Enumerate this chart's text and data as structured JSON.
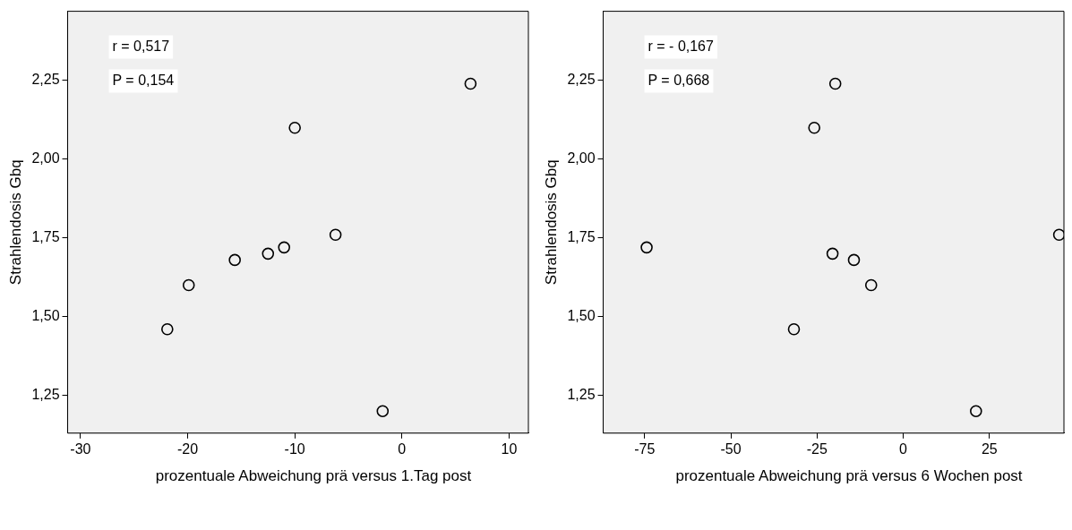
{
  "chart_data": [
    {
      "type": "scatter",
      "xlabel": "prozentuale Abweichung prä versus 1.Tag post",
      "ylabel": "Strahlendosis Gbq",
      "marker": "circle",
      "series": [
        {
          "color": "#000000",
          "x": [
            6.4,
            -10.0,
            -6.2,
            -11.0,
            -12.5,
            -15.6,
            -19.9,
            -21.9,
            -1.8
          ],
          "values": [
            2.24,
            2.1,
            1.76,
            1.72,
            1.7,
            1.68,
            1.6,
            1.46,
            1.2
          ]
        }
      ],
      "xlim": [
        -31.2,
        11.8
      ],
      "xticks": [
        -30,
        -20,
        -10,
        0,
        10
      ],
      "ylim": [
        1.13,
        2.47
      ],
      "yticks": [
        {
          "value": 1.25,
          "label": "1,25"
        },
        {
          "value": 1.5,
          "label": "1,50"
        },
        {
          "value": 1.75,
          "label": "1,75"
        },
        {
          "value": 2.0,
          "label": "2,00"
        },
        {
          "value": 2.25,
          "label": "2,25"
        }
      ],
      "annotations": [
        "r = 0,517",
        "P = 0,154"
      ]
    },
    {
      "type": "scatter",
      "xlabel": "prozentuale Abweichung prä versus 6 Wochen post",
      "ylabel": "Strahlendosis Gbq",
      "marker": "circle",
      "series": [
        {
          "color": "#000000",
          "x": [
            -74.4,
            -31.7,
            -25.8,
            -19.7,
            -20.5,
            -14.3,
            -9.3,
            21.1,
            45.2
          ],
          "values": [
            1.72,
            1.46,
            2.1,
            2.24,
            1.7,
            1.68,
            1.6,
            1.2,
            1.76
          ]
        }
      ],
      "xlim": [
        -87,
        46.6
      ],
      "xticks": [
        -75,
        -50,
        -25,
        0,
        25
      ],
      "ylim": [
        1.13,
        2.47
      ],
      "yticks": [
        {
          "value": 1.25,
          "label": "1,25"
        },
        {
          "value": 1.5,
          "label": "1,50"
        },
        {
          "value": 1.75,
          "label": "1,75"
        },
        {
          "value": 2.0,
          "label": "2,00"
        },
        {
          "value": 2.25,
          "label": "2,25"
        }
      ],
      "annotations": [
        "r = - 0,167",
        "P = 0,668"
      ]
    }
  ]
}
